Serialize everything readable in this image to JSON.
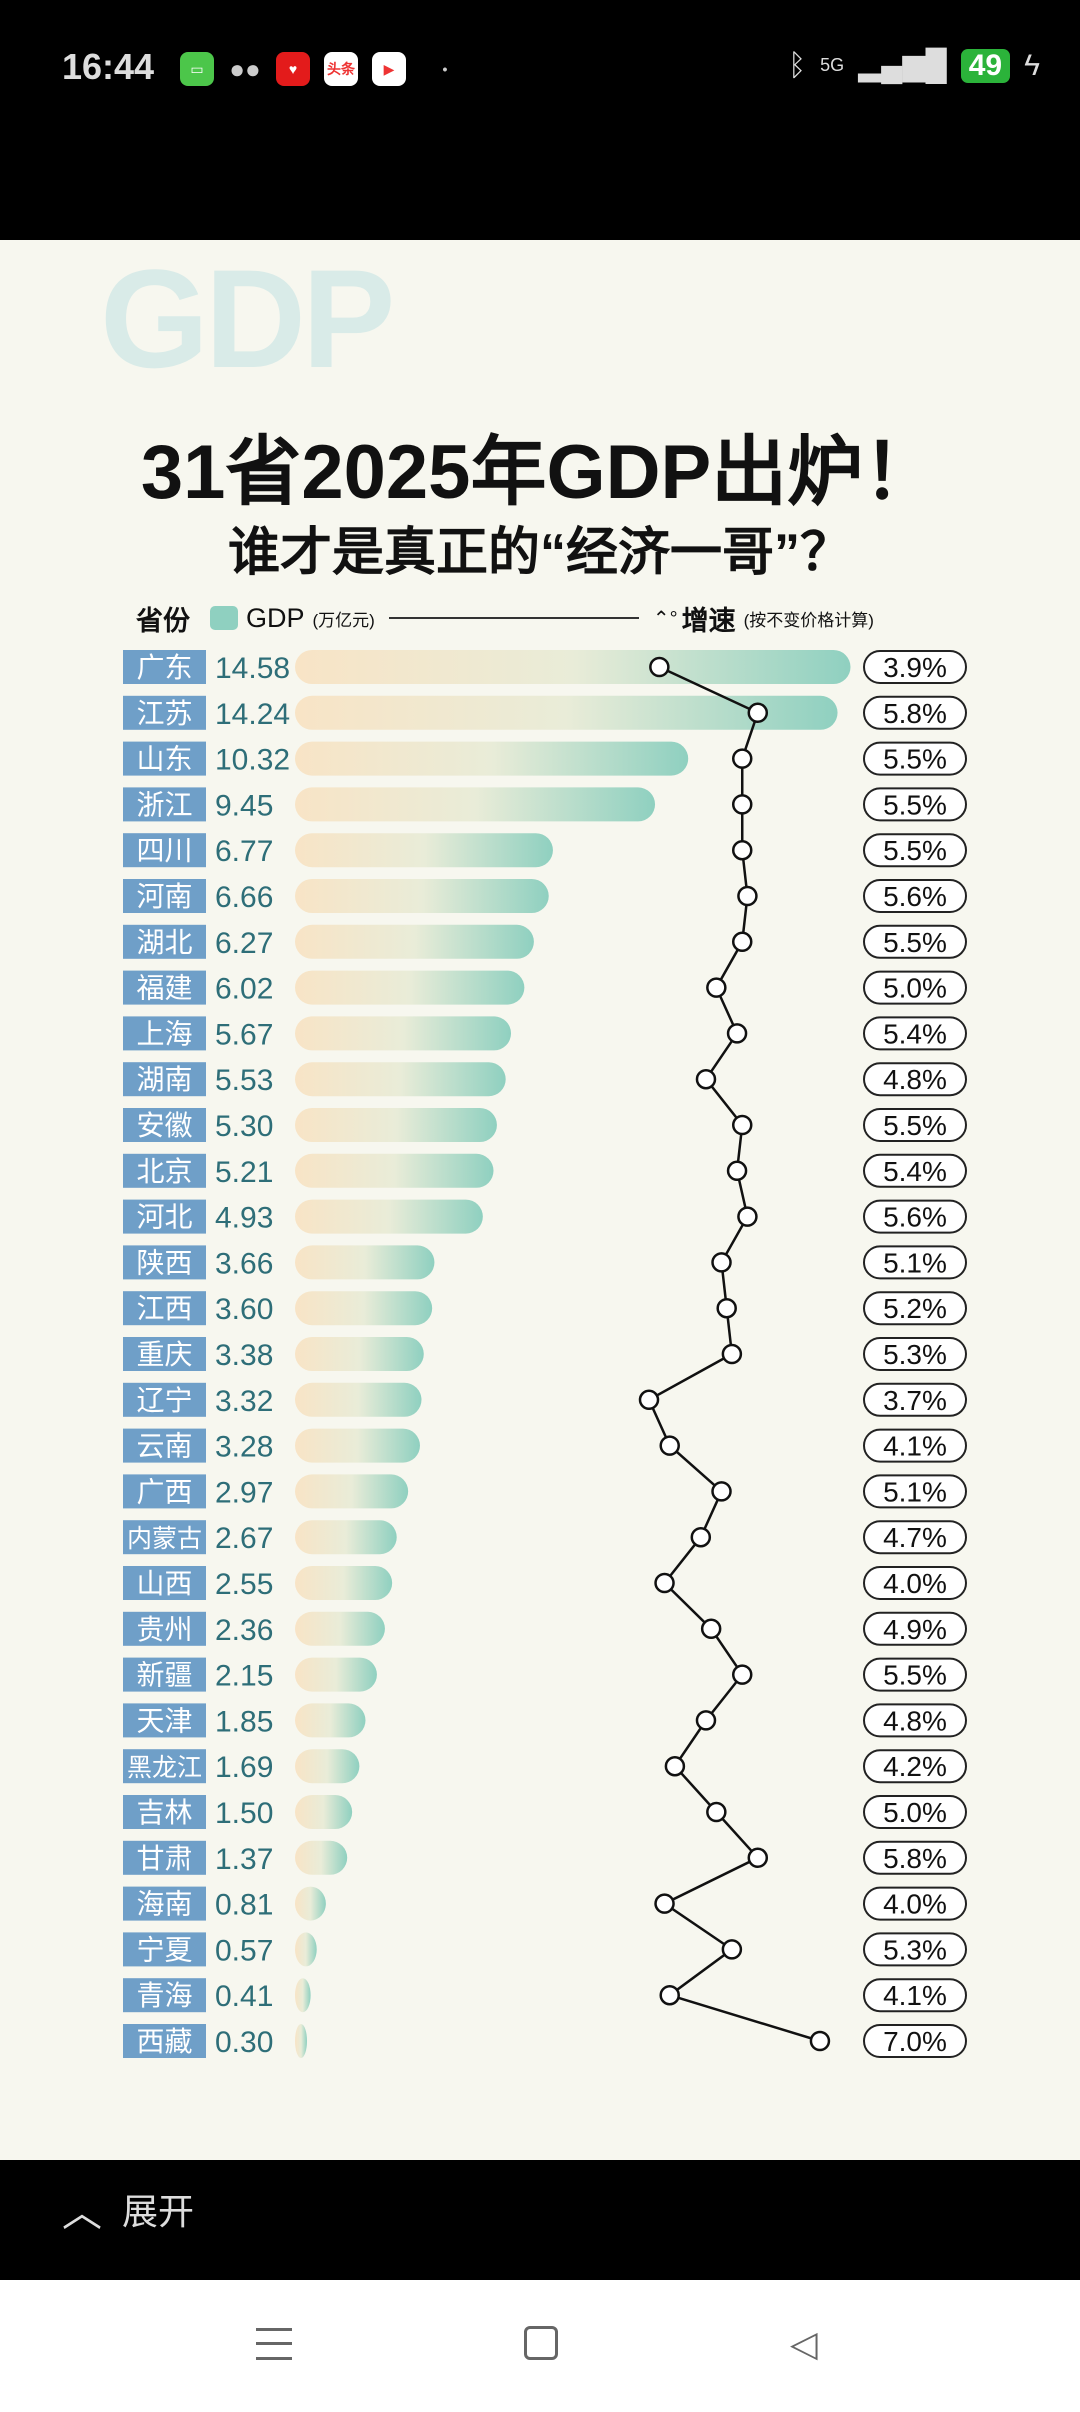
{
  "status": {
    "time": "16:44",
    "network": "5G",
    "battery": "49",
    "apps": [
      "messages-icon",
      "wechat-icon",
      "pinduoduo-icon",
      "toutiao-icon",
      "video-icon"
    ],
    "toutiao_label": "头条"
  },
  "watermark": "GDP",
  "title": "31省2025年GDP出炉！",
  "subtitle": "谁才是真正的“经济一哥”？",
  "legend": {
    "province": "省份",
    "gdp": "GDP",
    "gdp_unit": "(万亿元)",
    "growth": "增速",
    "growth_note": "(按不变价格计算)"
  },
  "expand_label": "展开",
  "colors": {
    "label_bg": "#6f9fc8",
    "value_text": "#2e6e78",
    "bar_start": "#f8e4c6",
    "bar_end": "#8fd0c0"
  },
  "chart_data": {
    "type": "bar+line",
    "title": "31省2025年GDP出炉！",
    "categories": [
      "广东",
      "江苏",
      "山东",
      "浙江",
      "四川",
      "河南",
      "湖北",
      "福建",
      "上海",
      "湖南",
      "安徽",
      "北京",
      "河北",
      "陕西",
      "江西",
      "重庆",
      "辽宁",
      "云南",
      "广西",
      "内蒙古",
      "山西",
      "贵州",
      "新疆",
      "天津",
      "黑龙江",
      "吉林",
      "甘肃",
      "海南",
      "宁夏",
      "青海",
      "西藏"
    ],
    "series": [
      {
        "name": "GDP (万亿元)",
        "type": "bar",
        "values": [
          14.58,
          14.24,
          10.32,
          9.45,
          6.77,
          6.66,
          6.27,
          6.02,
          5.67,
          5.53,
          5.3,
          5.21,
          4.93,
          3.66,
          3.6,
          3.38,
          3.32,
          3.28,
          2.97,
          2.67,
          2.55,
          2.36,
          2.15,
          1.85,
          1.69,
          1.5,
          1.37,
          0.81,
          0.57,
          0.41,
          0.3
        ]
      },
      {
        "name": "增速",
        "type": "line",
        "unit": "%",
        "values": [
          3.9,
          5.8,
          5.5,
          5.5,
          5.5,
          5.6,
          5.5,
          5.0,
          5.4,
          4.8,
          5.5,
          5.4,
          5.6,
          5.1,
          5.2,
          5.3,
          3.7,
          4.1,
          5.1,
          4.7,
          4.0,
          4.9,
          5.5,
          4.8,
          4.2,
          5.0,
          5.8,
          4.0,
          5.3,
          4.1,
          7.0
        ]
      }
    ]
  }
}
